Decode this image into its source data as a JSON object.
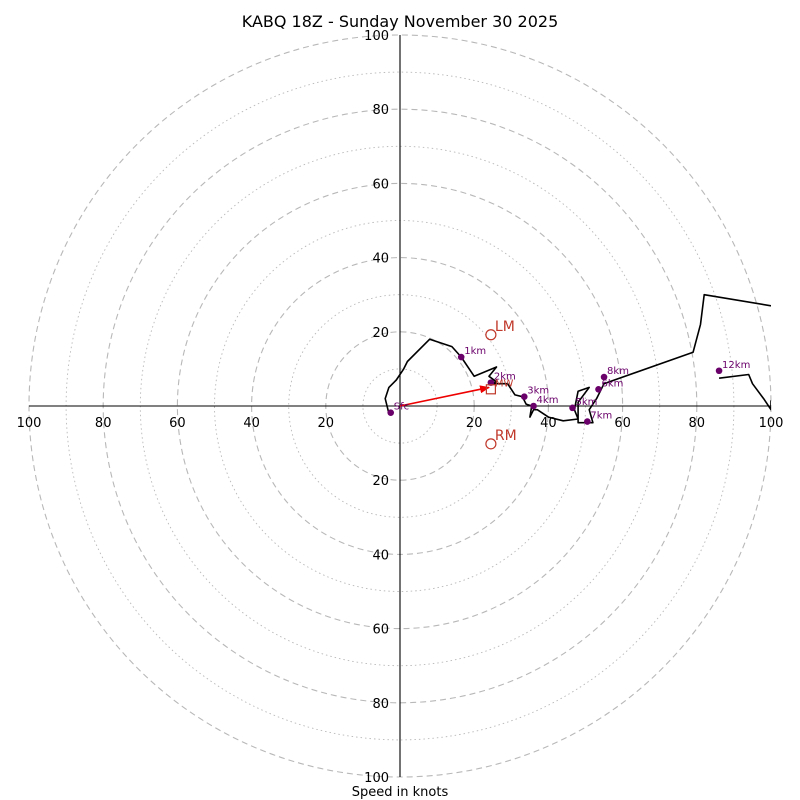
{
  "chart_data": {
    "type": "hodograph",
    "title": "KABQ 18Z - Sunday November 30 2025",
    "xlabel": "Speed in knots",
    "units": "knots",
    "range": [
      -100,
      100
    ],
    "ring_major": [
      20,
      40,
      60,
      80,
      100
    ],
    "ring_minor": [
      10,
      30,
      50,
      70,
      90
    ],
    "ticks": {
      "x": [
        {
          "value": -100,
          "label": "100"
        },
        {
          "value": -80,
          "label": "80"
        },
        {
          "value": -60,
          "label": "60"
        },
        {
          "value": -40,
          "label": "40"
        },
        {
          "value": -20,
          "label": "20"
        },
        {
          "value": 20,
          "label": "20"
        },
        {
          "value": 40,
          "label": "40"
        },
        {
          "value": 60,
          "label": "60"
        },
        {
          "value": 80,
          "label": "80"
        },
        {
          "value": 100,
          "label": "100"
        }
      ],
      "y": [
        {
          "value": 100,
          "label": "100"
        },
        {
          "value": 80,
          "label": "80"
        },
        {
          "value": 60,
          "label": "60"
        },
        {
          "value": 40,
          "label": "40"
        },
        {
          "value": 20,
          "label": "20"
        },
        {
          "value": -20,
          "label": "20"
        },
        {
          "value": -40,
          "label": "40"
        },
        {
          "value": -60,
          "label": "60"
        },
        {
          "value": -80,
          "label": "80"
        },
        {
          "value": -100,
          "label": "100"
        }
      ]
    },
    "trace": [
      [
        -3,
        -2
      ],
      [
        -4,
        2
      ],
      [
        -3,
        5
      ],
      [
        -1,
        7
      ],
      [
        1,
        10
      ],
      [
        2,
        12
      ],
      [
        8,
        18
      ],
      [
        14,
        16
      ],
      [
        16.5,
        13.2
      ],
      [
        20,
        8
      ],
      [
        26,
        10.5
      ],
      [
        24,
        8
      ],
      [
        26,
        6.5
      ],
      [
        24,
        6
      ],
      [
        26,
        6
      ],
      [
        29,
        6
      ],
      [
        31,
        3
      ],
      [
        33,
        2.5
      ],
      [
        34,
        0.5
      ],
      [
        35.5,
        0
      ],
      [
        35,
        -3
      ],
      [
        36,
        -1
      ],
      [
        37,
        -1
      ],
      [
        40,
        -3
      ],
      [
        44,
        -4
      ],
      [
        48,
        -3.5
      ],
      [
        47,
        -1
      ],
      [
        48,
        4
      ],
      [
        51,
        5
      ],
      [
        48,
        1
      ],
      [
        48,
        -4.5
      ],
      [
        52,
        -4.5
      ],
      [
        51,
        -1
      ],
      [
        53,
        2
      ],
      [
        55,
        6
      ],
      [
        79,
        14.5
      ],
      [
        81,
        22
      ],
      [
        82,
        30
      ],
      [
        100,
        27
      ]
    ],
    "trace_tail": [
      [
        86,
        7.5
      ],
      [
        94,
        8.5
      ],
      [
        95,
        6
      ],
      [
        98,
        2
      ],
      [
        100,
        -1
      ],
      [
        100,
        1.5
      ]
    ],
    "height_labels": [
      {
        "label": "Sfc",
        "u": -2.5,
        "v": -1.8
      },
      {
        "label": "1km",
        "u": 16.5,
        "v": 13.2
      },
      {
        "label": "2km",
        "u": 24.5,
        "v": 6.3
      },
      {
        "label": "3km",
        "u": 33.5,
        "v": 2.5
      },
      {
        "label": "4km",
        "u": 36,
        "v": 0
      },
      {
        "label": "5km",
        "u": 46.5,
        "v": -0.5
      },
      {
        "label": "6km",
        "u": 53.5,
        "v": 4.5
      },
      {
        "label": "7km",
        "u": 50.5,
        "v": -4.2
      },
      {
        "label": "8km",
        "u": 55,
        "v": 7.8
      },
      {
        "label": "12km",
        "u": 86,
        "v": 9.5
      }
    ],
    "storm_motion": {
      "LM": {
        "label": "LM",
        "u": 24.5,
        "v": 19.2
      },
      "RM": {
        "label": "RM",
        "u": 24.5,
        "v": -10.2
      },
      "MW": {
        "label": "MW",
        "u": 24.5,
        "v": 4.5
      }
    },
    "shear_vector": {
      "from": [
        0,
        0
      ],
      "to": [
        24,
        5
      ]
    }
  },
  "colors": {
    "trace": "#000000",
    "height_marker": "#6a006a",
    "storm_marker": "#c0392b",
    "shear_arrow": "#ee0000",
    "ring": "#b8b8b8",
    "axis": "#000000"
  }
}
